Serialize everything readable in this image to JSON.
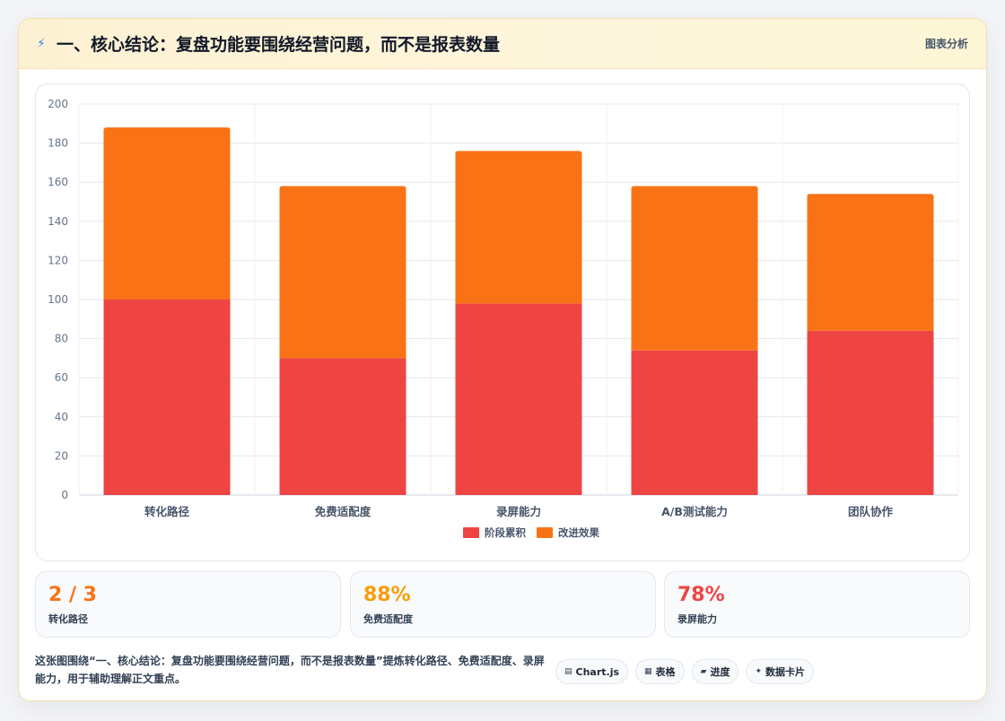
{
  "header": {
    "title": "一、核心结论：复盘功能要围绕经营问题，而不是报表数量",
    "tag": "图表分析"
  },
  "chart_data": {
    "type": "bar",
    "stacked": true,
    "categories": [
      "转化路径",
      "免费适配度",
      "录屏能力",
      "A/B测试能力",
      "团队协作"
    ],
    "series": [
      {
        "name": "阶段累积",
        "color": "#ef4444",
        "values": [
          100,
          70,
          98,
          74,
          84
        ]
      },
      {
        "name": "改进效果",
        "color": "#f97316",
        "values": [
          88,
          88,
          78,
          84,
          70
        ]
      }
    ],
    "ylim": [
      0,
      200
    ],
    "yticks": [
      0,
      20,
      40,
      60,
      80,
      100,
      120,
      140,
      160,
      180,
      200
    ],
    "grid": true,
    "legend": "bottom"
  },
  "stats": [
    {
      "value": "2 / 3",
      "label": "转化路径",
      "color": "#f97316"
    },
    {
      "value": "88%",
      "label": "免费适配度",
      "color": "#f59e0b"
    },
    {
      "value": "78%",
      "label": "录屏能力",
      "color": "#ef4444"
    }
  ],
  "footer": {
    "description": "这张图围绕“一、核心结论：复盘功能要围绕经营问题，而不是报表数量”提炼转化路径、免费适配度、录屏能力，用于辅助理解正文重点。",
    "chips": [
      {
        "icon": "▤",
        "label": "Chart.js"
      },
      {
        "icon": "▦",
        "label": "表格"
      },
      {
        "icon": "▰",
        "label": "进度"
      },
      {
        "icon": "✦",
        "label": "数据卡片"
      }
    ]
  }
}
